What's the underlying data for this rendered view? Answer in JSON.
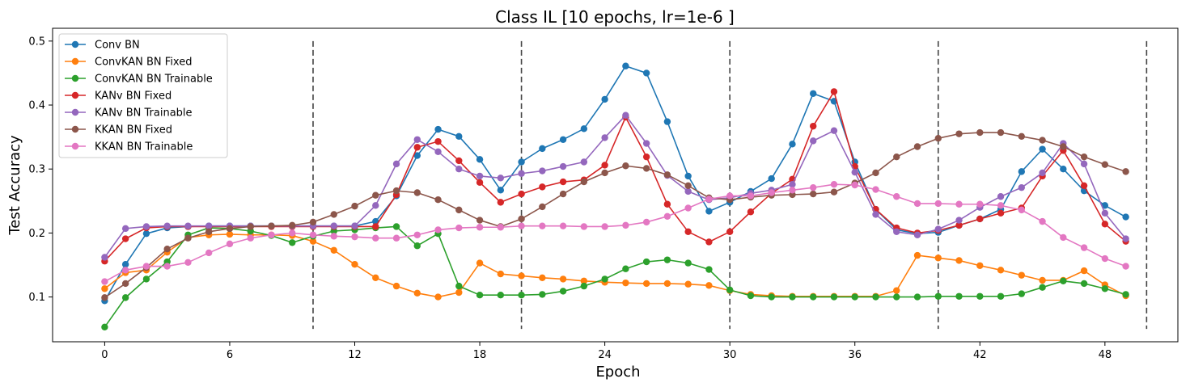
{
  "chart_data": {
    "type": "line",
    "title": "Class IL [10 epochs, lr=1e-6 ]",
    "xlabel": "Epoch",
    "ylabel": "Test Accuracy",
    "xlim": [
      -2.5,
      51.5
    ],
    "ylim": [
      0.03,
      0.52
    ],
    "xticks": [
      0,
      6,
      12,
      18,
      24,
      30,
      36,
      42,
      48
    ],
    "yticks": [
      0.1,
      0.2,
      0.3,
      0.4,
      0.5
    ],
    "ytick_labels": [
      "0.1",
      "0.2",
      "0.3",
      "0.4",
      "0.5"
    ],
    "grid": false,
    "legend_position": "top-left",
    "task_boundaries": [
      10,
      20,
      30,
      40,
      50
    ],
    "boundary_range": [
      0.05,
      0.5
    ],
    "boundary_color": "#444444",
    "series": [
      {
        "name": "Conv BN",
        "color": "#1f77b4",
        "values": [
          0.094,
          0.151,
          0.199,
          0.208,
          0.21,
          0.211,
          0.211,
          0.211,
          0.211,
          0.211,
          0.211,
          0.211,
          0.211,
          0.218,
          0.258,
          0.321,
          0.362,
          0.351,
          0.315,
          0.267,
          0.311,
          0.332,
          0.346,
          0.363,
          0.409,
          0.461,
          0.45,
          0.374,
          0.289,
          0.234,
          0.248,
          0.265,
          0.285,
          0.339,
          0.418,
          0.406,
          0.311,
          0.237,
          0.205,
          0.199,
          0.201,
          0.212,
          0.222,
          0.237,
          0.296,
          0.331,
          0.3,
          0.266,
          0.243,
          0.225
        ]
      },
      {
        "name": "ConvKAN BN Fixed",
        "color": "#ff7f0e",
        "values": [
          0.113,
          0.138,
          0.142,
          0.17,
          0.193,
          0.197,
          0.198,
          0.197,
          0.197,
          0.196,
          0.187,
          0.173,
          0.151,
          0.13,
          0.117,
          0.106,
          0.1,
          0.107,
          0.153,
          0.136,
          0.133,
          0.13,
          0.128,
          0.125,
          0.123,
          0.122,
          0.121,
          0.121,
          0.12,
          0.118,
          0.11,
          0.104,
          0.102,
          0.101,
          0.101,
          0.101,
          0.101,
          0.101,
          0.11,
          0.165,
          0.161,
          0.157,
          0.149,
          0.142,
          0.134,
          0.126,
          0.126,
          0.141,
          0.119,
          0.102
        ]
      },
      {
        "name": "ConvKAN BN Trainable",
        "color": "#2ca02c",
        "values": [
          0.053,
          0.099,
          0.128,
          0.155,
          0.197,
          0.208,
          0.207,
          0.203,
          0.196,
          0.185,
          0.195,
          0.203,
          0.205,
          0.208,
          0.21,
          0.18,
          0.199,
          0.117,
          0.103,
          0.103,
          0.103,
          0.104,
          0.109,
          0.117,
          0.128,
          0.144,
          0.155,
          0.158,
          0.153,
          0.143,
          0.111,
          0.102,
          0.1,
          0.1,
          0.1,
          0.1,
          0.1,
          0.1,
          0.1,
          0.1,
          0.101,
          0.101,
          0.101,
          0.101,
          0.105,
          0.115,
          0.125,
          0.121,
          0.113,
          0.104
        ]
      },
      {
        "name": "KANv BN Fixed",
        "color": "#d62728",
        "values": [
          0.156,
          0.191,
          0.208,
          0.21,
          0.21,
          0.21,
          0.21,
          0.21,
          0.21,
          0.21,
          0.21,
          0.21,
          0.21,
          0.21,
          0.26,
          0.334,
          0.343,
          0.313,
          0.279,
          0.248,
          0.261,
          0.272,
          0.28,
          0.283,
          0.306,
          0.381,
          0.319,
          0.245,
          0.202,
          0.186,
          0.202,
          0.233,
          0.262,
          0.284,
          0.367,
          0.421,
          0.304,
          0.237,
          0.208,
          0.2,
          0.204,
          0.212,
          0.222,
          0.231,
          0.239,
          0.289,
          0.329,
          0.274,
          0.214,
          0.187
        ]
      },
      {
        "name": "KANv BN Trainable",
        "color": "#9467bd",
        "values": [
          0.162,
          0.207,
          0.21,
          0.211,
          0.211,
          0.211,
          0.211,
          0.211,
          0.211,
          0.211,
          0.211,
          0.211,
          0.211,
          0.243,
          0.308,
          0.346,
          0.327,
          0.3,
          0.289,
          0.286,
          0.293,
          0.297,
          0.304,
          0.311,
          0.349,
          0.384,
          0.34,
          0.29,
          0.265,
          0.252,
          0.255,
          0.262,
          0.267,
          0.276,
          0.344,
          0.36,
          0.295,
          0.229,
          0.202,
          0.197,
          0.206,
          0.22,
          0.24,
          0.257,
          0.271,
          0.294,
          0.34,
          0.308,
          0.231,
          0.191
        ]
      },
      {
        "name": "KKAN BN Fixed",
        "color": "#8c564b",
        "values": [
          0.099,
          0.121,
          0.146,
          0.175,
          0.192,
          0.202,
          0.207,
          0.21,
          0.211,
          0.212,
          0.217,
          0.229,
          0.242,
          0.259,
          0.266,
          0.263,
          0.252,
          0.236,
          0.22,
          0.21,
          0.222,
          0.241,
          0.261,
          0.28,
          0.294,
          0.305,
          0.301,
          0.291,
          0.274,
          0.255,
          0.252,
          0.256,
          0.259,
          0.26,
          0.261,
          0.264,
          0.278,
          0.294,
          0.319,
          0.335,
          0.348,
          0.355,
          0.357,
          0.357,
          0.351,
          0.345,
          0.335,
          0.319,
          0.307,
          0.296
        ]
      },
      {
        "name": "KKAN BN Trainable",
        "color": "#e377c2",
        "values": [
          0.124,
          0.142,
          0.148,
          0.148,
          0.154,
          0.169,
          0.183,
          0.192,
          0.197,
          0.2,
          0.197,
          0.195,
          0.194,
          0.192,
          0.192,
          0.197,
          0.205,
          0.208,
          0.209,
          0.209,
          0.211,
          0.211,
          0.211,
          0.21,
          0.21,
          0.212,
          0.217,
          0.226,
          0.239,
          0.253,
          0.258,
          0.258,
          0.263,
          0.267,
          0.271,
          0.276,
          0.275,
          0.268,
          0.257,
          0.246,
          0.246,
          0.245,
          0.245,
          0.243,
          0.236,
          0.218,
          0.193,
          0.177,
          0.16,
          0.148
        ]
      }
    ]
  }
}
